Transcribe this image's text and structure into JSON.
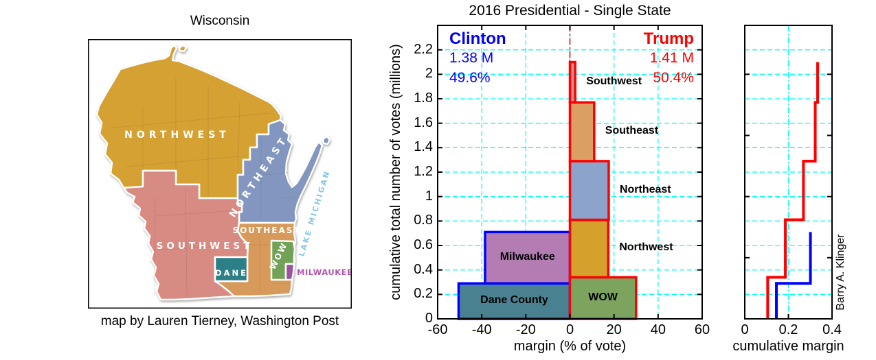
{
  "map_panel": {
    "title": "Wisconsin",
    "caption": "map by Lauren Tierney, Washington Post",
    "lake_label": "LAKE MICHIGAN",
    "lake_label_color": "#85C6EB",
    "regions": [
      {
        "id": "northwest",
        "label": "NORTHWEST",
        "color": "#D5A133",
        "label_color": "#FFFFFF"
      },
      {
        "id": "northeast",
        "label": "NORTHEAST",
        "color": "#8296BF",
        "label_color": "#FFFFFF"
      },
      {
        "id": "southwest",
        "label": "SOUTHWEST",
        "color": "#D88B83",
        "label_color": "#FFFFFF"
      },
      {
        "id": "southeast",
        "label": "SOUTHEAST",
        "color": "#D89A5B",
        "label_color": "#FFFFFF"
      },
      {
        "id": "wow",
        "label": "WOW",
        "color": "#72A257",
        "label_color": "#FFFFFF"
      },
      {
        "id": "dane",
        "label": "DANE",
        "color": "#2C7F87",
        "label_color": "#FFFFFF"
      },
      {
        "id": "milwaukee",
        "label": "MILWAUKEE",
        "color": "#9C50A0",
        "label_color": "#B457B0"
      }
    ]
  },
  "chart_data": [
    {
      "type": "bar",
      "title": "2016 Presidential - Single State",
      "xlabel": "margin (% of vote)",
      "ylabel": "cumulative total number of votes (millions)",
      "xlim": [
        -60,
        60
      ],
      "ylim": [
        0,
        2.4
      ],
      "xticks": [
        "-60",
        "-40",
        "-20",
        "0",
        "20",
        "40",
        "60"
      ],
      "yticks": [
        "0",
        "0.2",
        "0.4",
        "0.6",
        "0.8",
        "1",
        "1.2",
        "1.4",
        "1.6",
        "1.8",
        "2",
        "2.2"
      ],
      "grid": true,
      "grid_color": "#00FFFF",
      "zero_line_color": "#FF0000",
      "candidates": {
        "clinton": {
          "name": "Clinton",
          "votes": "1.38 M",
          "pct": "49.6%",
          "color": "#0000FF"
        },
        "trump": {
          "name": "Trump",
          "votes": "1.41 M",
          "pct": "50.4%",
          "color": "#FF0000"
        }
      },
      "bars": [
        {
          "region": "Dane County",
          "margin_pct": -50.5,
          "votes_from": 0,
          "votes_to": 0.29,
          "fill": "#4A8190",
          "edge": "#0000FF",
          "label_placement": "inside"
        },
        {
          "region": "Milwaukee",
          "margin_pct": -38.5,
          "votes_from": 0.29,
          "votes_to": 0.71,
          "fill": "#B37CB3",
          "edge": "#0000FF",
          "label_placement": "inside"
        },
        {
          "region": "WOW",
          "margin_pct": 30,
          "votes_from": 0,
          "votes_to": 0.34,
          "fill": "#7CA45E",
          "edge": "#FF0000",
          "label_placement": "inside"
        },
        {
          "region": "Northwest",
          "margin_pct": 17.4,
          "votes_from": 0.34,
          "votes_to": 0.81,
          "fill": "#D6A02C",
          "edge": "#FF0000",
          "label_placement": "right"
        },
        {
          "region": "Northeast",
          "margin_pct": 17.6,
          "votes_from": 0.81,
          "votes_to": 1.29,
          "fill": "#8CA3CB",
          "edge": "#FF0000",
          "label_placement": "right"
        },
        {
          "region": "Southeast",
          "margin_pct": 11,
          "votes_from": 1.29,
          "votes_to": 1.77,
          "fill": "#DC9F63",
          "edge": "#FF0000",
          "label_placement": "right"
        },
        {
          "region": "Southwest",
          "margin_pct": 2.4,
          "votes_from": 1.77,
          "votes_to": 2.1,
          "fill": "#C88E8E",
          "edge": "#FF0000",
          "label_placement": "right"
        }
      ]
    },
    {
      "type": "line",
      "xlabel": "cumulative margin",
      "xlim": [
        0,
        0.4
      ],
      "xticks": [
        "0",
        "0.2",
        "0.4"
      ],
      "ylim": [
        0,
        2.4
      ],
      "grid": true,
      "grid_color": "#00FFFF",
      "credit": "Barry A. Klinger",
      "series": [
        {
          "name": "Trump regions",
          "color": "#FF0000",
          "points": [
            [
              0.105,
              0
            ],
            [
              0.105,
              0.34
            ],
            [
              0.186,
              0.34
            ],
            [
              0.186,
              0.81
            ],
            [
              0.269,
              0.81
            ],
            [
              0.269,
              1.29
            ],
            [
              0.323,
              1.29
            ],
            [
              0.323,
              1.77
            ],
            [
              0.334,
              1.77
            ],
            [
              0.334,
              2.1
            ]
          ]
        },
        {
          "name": "Clinton regions",
          "color": "#0000FF",
          "points": [
            [
              0.145,
              0
            ],
            [
              0.145,
              0.29
            ],
            [
              0.301,
              0.29
            ],
            [
              0.301,
              0.71
            ]
          ]
        }
      ]
    }
  ]
}
